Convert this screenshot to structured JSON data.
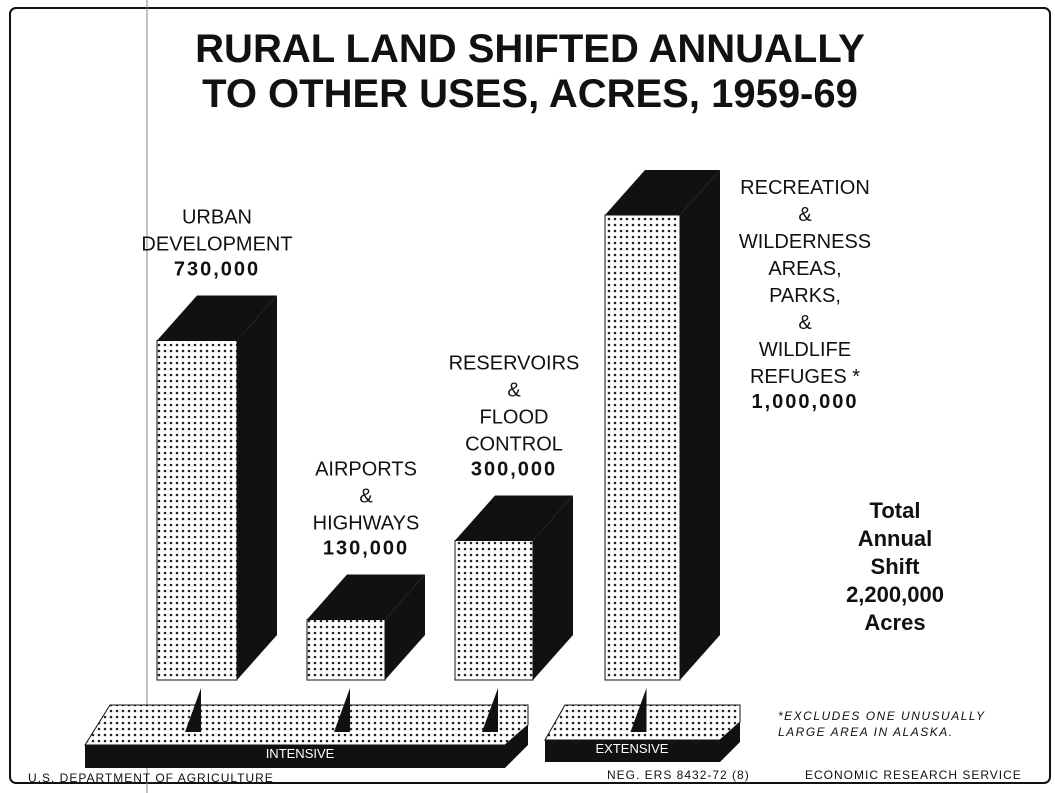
{
  "chart_data": {
    "type": "bar",
    "title": "RURAL LAND SHIFTED ANNUALLY\nTO OTHER USES, ACRES, 1959-69",
    "categories": [
      "URBAN\nDEVELOPMENT",
      "AIRPORTS\n&\nHIGHWAYS",
      "RESERVOIRS\n&\nFLOOD\nCONTROL",
      "RECREATION\n&\nWILDERNESS\nAREAS,\nPARKS,\n&\nWILDLIFE\nREFUGES *"
    ],
    "values": [
      730000,
      130000,
      300000,
      1000000
    ],
    "value_labels": [
      "730,000",
      "130,000",
      "300,000",
      "1,000,000"
    ],
    "color": "#111111",
    "groups": [
      "INTENSIVE",
      "EXTENSIVE"
    ],
    "total_note": "Total\nAnnual\nShift\n2,200,000\nAcres",
    "footnote": "*EXCLUDES ONE UNUSUALLY\nLARGE AREA IN ALASKA.",
    "footer_left": "U.S. DEPARTMENT OF AGRICULTURE",
    "footer_center": "NEG. ERS 8432-72 (8)",
    "footer_right": "ECONOMIC RESEARCH SERVICE"
  }
}
